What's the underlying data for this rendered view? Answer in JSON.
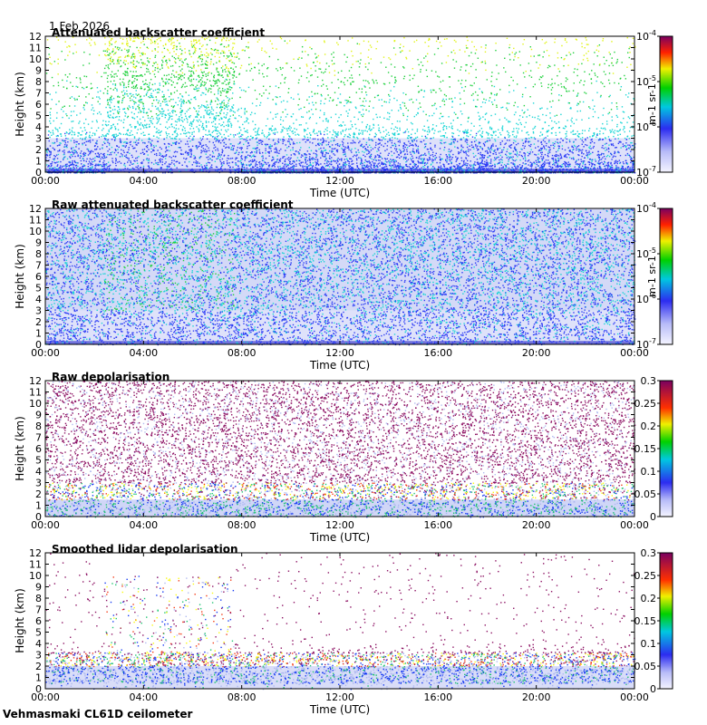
{
  "header": {
    "date": "1 Feb 2026"
  },
  "footer": {
    "site": "Vehmasmaki CL61D ceilometer"
  },
  "chart_data": [
    {
      "type": "heatmap",
      "title": "Attenuated backscatter coefficient",
      "xlabel": "Time (UTC)",
      "ylabel": "Height (km)",
      "xticks": [
        "00:00",
        "04:00",
        "08:00",
        "12:00",
        "16:00",
        "20:00",
        "00:00"
      ],
      "yticks": [
        "0",
        "1",
        "2",
        "3",
        "4",
        "5",
        "6",
        "7",
        "8",
        "9",
        "10",
        "11",
        "12"
      ],
      "ylim": [
        0,
        12
      ],
      "colorbar": {
        "scale": "log",
        "range": [
          1e-07,
          0.0001
        ],
        "ticks": [
          {
            "base": "10",
            "exp": "-7"
          },
          {
            "base": "10",
            "exp": "-6"
          },
          {
            "base": "10",
            "exp": "-5"
          },
          {
            "base": "10",
            "exp": "-4"
          }
        ],
        "unit": "m-1 sr-1"
      }
    },
    {
      "type": "heatmap",
      "title": "Raw attenuated backscatter coefficient",
      "xlabel": "Time (UTC)",
      "ylabel": "Height (km)",
      "xticks": [
        "00:00",
        "04:00",
        "08:00",
        "12:00",
        "16:00",
        "20:00",
        "00:00"
      ],
      "yticks": [
        "0",
        "1",
        "2",
        "3",
        "4",
        "5",
        "6",
        "7",
        "8",
        "9",
        "10",
        "11",
        "12"
      ],
      "ylim": [
        0,
        12
      ],
      "colorbar": {
        "scale": "log",
        "range": [
          1e-07,
          0.0001
        ],
        "ticks": [
          {
            "base": "10",
            "exp": "-7"
          },
          {
            "base": "10",
            "exp": "-6"
          },
          {
            "base": "10",
            "exp": "-5"
          },
          {
            "base": "10",
            "exp": "-4"
          }
        ],
        "unit": "m-1 sr-1"
      }
    },
    {
      "type": "heatmap",
      "title": "Raw depolarisation",
      "xlabel": "Time (UTC)",
      "ylabel": "Height (km)",
      "xticks": [
        "00:00",
        "04:00",
        "08:00",
        "12:00",
        "16:00",
        "20:00",
        "00:00"
      ],
      "yticks": [
        "0",
        "1",
        "2",
        "3",
        "4",
        "5",
        "6",
        "7",
        "8",
        "9",
        "10",
        "11",
        "12"
      ],
      "ylim": [
        0,
        12
      ],
      "colorbar": {
        "scale": "linear",
        "range": [
          0,
          0.3
        ],
        "ticks": [
          "0",
          "0.05",
          "0.1",
          "0.15",
          "0.2",
          "0.25",
          "0.3"
        ]
      }
    },
    {
      "type": "heatmap",
      "title": "Smoothed lidar depolarisation",
      "xlabel": "Time (UTC)",
      "ylabel": "Height (km)",
      "xticks": [
        "00:00",
        "04:00",
        "08:00",
        "12:00",
        "16:00",
        "20:00",
        "00:00"
      ],
      "yticks": [
        "0",
        "1",
        "2",
        "3",
        "4",
        "5",
        "6",
        "7",
        "8",
        "9",
        "10",
        "11",
        "12"
      ],
      "ylim": [
        0,
        12
      ],
      "colorbar": {
        "scale": "linear",
        "range": [
          0,
          0.3
        ],
        "ticks": [
          "0",
          "0.05",
          "0.1",
          "0.15",
          "0.2",
          "0.25",
          "0.3"
        ]
      }
    }
  ]
}
